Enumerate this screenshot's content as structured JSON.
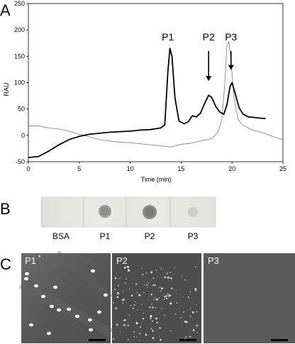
{
  "figure": {
    "panel_labels": [
      "A",
      "B",
      "C"
    ]
  },
  "chart_data": {
    "type": "line",
    "xlabel": "Time (min)",
    "ylabel": "RAU",
    "xlim": [
      0,
      25
    ],
    "ylim": [
      -50,
      250
    ],
    "x_ticks": [
      "0",
      "5",
      "10",
      "15",
      "20",
      "25"
    ],
    "y_ticks": [
      "-50",
      "0",
      "50",
      "100",
      "150",
      "200",
      "250"
    ],
    "grid": false,
    "series": [
      {
        "color": "#000000",
        "points": [
          [
            0,
            -42
          ],
          [
            1,
            -40
          ],
          [
            2,
            -30
          ],
          [
            3,
            -18
          ],
          [
            4,
            -8
          ],
          [
            5,
            -2
          ],
          [
            6,
            2
          ],
          [
            7,
            4
          ],
          [
            8,
            6
          ],
          [
            9,
            7
          ],
          [
            10,
            8
          ],
          [
            11,
            10
          ],
          [
            12,
            11
          ],
          [
            13,
            14
          ],
          [
            13.4,
            20
          ],
          [
            13.7,
            120
          ],
          [
            13.9,
            165
          ],
          [
            14.1,
            150
          ],
          [
            14.4,
            70
          ],
          [
            14.8,
            27
          ],
          [
            15.3,
            22
          ],
          [
            15.7,
            26
          ],
          [
            16.1,
            37
          ],
          [
            16.5,
            35
          ],
          [
            16.9,
            42
          ],
          [
            17.3,
            60
          ],
          [
            17.7,
            76
          ],
          [
            18.0,
            72
          ],
          [
            18.4,
            55
          ],
          [
            18.8,
            44
          ],
          [
            19.2,
            40
          ],
          [
            19.5,
            58
          ],
          [
            19.8,
            92
          ],
          [
            20.0,
            100
          ],
          [
            20.3,
            80
          ],
          [
            20.7,
            52
          ],
          [
            21.1,
            40
          ],
          [
            21.6,
            35
          ],
          [
            22.2,
            34
          ],
          [
            23.0,
            32
          ],
          [
            23.3,
            32
          ]
        ]
      },
      {
        "color": "#888888",
        "points": [
          [
            0,
            18
          ],
          [
            1,
            18
          ],
          [
            2,
            14
          ],
          [
            3,
            12
          ],
          [
            4,
            8
          ],
          [
            5,
            2
          ],
          [
            6,
            -3
          ],
          [
            7,
            -8
          ],
          [
            8,
            -11
          ],
          [
            9,
            -13
          ],
          [
            10,
            -14
          ],
          [
            11,
            -16
          ],
          [
            12,
            -18
          ],
          [
            13,
            -20
          ],
          [
            14,
            -22
          ],
          [
            15,
            -17
          ],
          [
            16,
            -15
          ],
          [
            17,
            -10
          ],
          [
            18,
            -6
          ],
          [
            18.6,
            5
          ],
          [
            19.0,
            30
          ],
          [
            19.3,
            100
          ],
          [
            19.5,
            170
          ],
          [
            19.7,
            178
          ],
          [
            19.9,
            140
          ],
          [
            20.2,
            70
          ],
          [
            20.6,
            30
          ],
          [
            21,
            20
          ],
          [
            22,
            10
          ],
          [
            23,
            5
          ],
          [
            24,
            -2
          ],
          [
            25,
            -8
          ]
        ]
      }
    ],
    "annotations": [
      {
        "text": "P1",
        "x": 13.7,
        "y": 180
      },
      {
        "text": "P2",
        "x": 17.7,
        "y": 180
      },
      {
        "text": "P3",
        "x": 19.9,
        "y": 180
      }
    ],
    "arrows": [
      {
        "x": 17.7,
        "y_from": 160,
        "y_to": 103
      },
      {
        "x": 19.9,
        "y_from": 160,
        "y_to": 124
      }
    ]
  },
  "dot_blot": {
    "lanes": [
      "BSA",
      "P1",
      "P2",
      "P3"
    ],
    "spot_intensity": [
      "none",
      "medium",
      "strong",
      "faint"
    ]
  },
  "micrographs": [
    {
      "label": "P1",
      "asterisk": "*",
      "background": "#555555",
      "feature": "large sparse particles"
    },
    {
      "label": "P2",
      "asterisk": "",
      "background": "#4d4d4d",
      "feature": "many small particles"
    },
    {
      "label": "P3",
      "asterisk": "",
      "background": "#5a5a5a",
      "feature": "none"
    }
  ]
}
